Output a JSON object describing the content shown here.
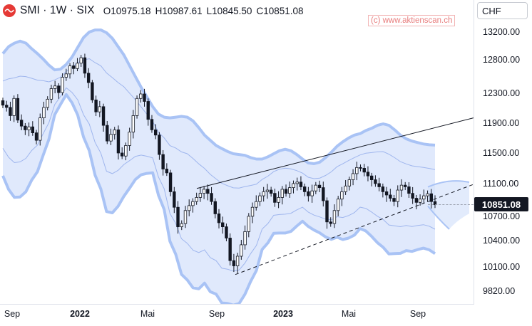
{
  "header": {
    "symbol": "SMI",
    "title": "SMI · 1W · SIX",
    "ohlc": {
      "open": "O10975.18",
      "high": "H10987.61",
      "low": "L10845.50",
      "close": "C10851.08"
    }
  },
  "watermark": "(c) www.aktienscan.ch",
  "currency_select": "CHF",
  "last_price": "10851.08",
  "colors": {
    "band_fill": "#d6e2fb",
    "band_outer": "#a9c3f5",
    "band_inner": "#8fa9ea",
    "candle": "#131722",
    "trendline": "#131722",
    "logo": "#e53935"
  },
  "icons": {
    "logo": "smi-logo-icon"
  },
  "y_axis_labels": [
    "13200.00",
    "12800.00",
    "12300.00",
    "11900.00",
    "11500.00",
    "11100.00",
    "10700.00",
    "10400.00",
    "10100.00",
    "9820.00"
  ],
  "x_axis_labels": [
    {
      "text": "Sep",
      "bold": false
    },
    {
      "text": "2022",
      "bold": true
    },
    {
      "text": "Mai",
      "bold": false
    },
    {
      "text": "Sep",
      "bold": false
    },
    {
      "text": "2023",
      "bold": true
    },
    {
      "text": "Mai",
      "bold": false
    },
    {
      "text": "Sep",
      "bold": false
    }
  ],
  "chart_data": {
    "type": "candlestick",
    "series_close": [
      12150,
      12120,
      12010,
      12240,
      11950,
      11870,
      11820,
      11860,
      11780,
      11680,
      11980,
      12120,
      12230,
      12380,
      12420,
      12320,
      12550,
      12600,
      12720,
      12680,
      12760,
      12840,
      12610,
      12470,
      12220,
      12060,
      12130,
      11880,
      11670,
      11760,
      11820,
      11510,
      11470,
      11610,
      11790,
      12010,
      12240,
      12300,
      12200,
      11960,
      11820,
      11750,
      11490,
      11300,
      11250,
      11010,
      10820,
      10580,
      10620,
      10780,
      10840,
      10890,
      10940,
      10990,
      11040,
      10990,
      10890,
      10740,
      10630,
      10580,
      10440,
      10180,
      10120,
      10230,
      10360,
      10520,
      10710,
      10820,
      10890,
      10960,
      11010,
      11030,
      10990,
      10880,
      10940,
      11040,
      10990,
      11060,
      11110,
      11130,
      11070,
      11010,
      10960,
      11020,
      11090,
      11060,
      10900,
      10640,
      10620,
      10780,
      10920,
      11010,
      11080,
      11160,
      11240,
      11320,
      11310,
      11260,
      11210,
      11160,
      11110,
      11070,
      11010,
      10970,
      10930,
      10890,
      11030,
      11090,
      11070,
      10990,
      10930,
      10880,
      10920,
      10960,
      10985,
      10890,
      10851
    ],
    "band_upper": [
      12900,
      13000,
      13050,
      13080,
      13050,
      12970,
      12900,
      12820,
      12730,
      12660,
      12670,
      12740,
      12850,
      12990,
      13130,
      13210,
      13240,
      13240,
      13200,
      13120,
      13000,
      12880,
      12720,
      12560,
      12400,
      12260,
      12130,
      12030,
      11990,
      11980,
      11990,
      12000,
      11990,
      11940,
      11850,
      11750,
      11680,
      11610,
      11570,
      11530,
      11500,
      11490,
      11480,
      11450,
      11430,
      11430,
      11460,
      11500,
      11540,
      11560,
      11540,
      11490,
      11430,
      11380,
      11370,
      11390,
      11450,
      11520,
      11600,
      11660,
      11710,
      11750,
      11770,
      11810,
      11840,
      11880,
      11900,
      11880,
      11820,
      11750,
      11700,
      11670,
      11650,
      11630,
      11620,
      11615
    ],
    "y_axis_ticks": [
      13200,
      12800,
      12300,
      11900,
      11500,
      11100,
      10700,
      10400,
      10100,
      9820
    ],
    "x_axis_ticks": [
      "Sep",
      "2022",
      "Mai",
      "Sep",
      "2023",
      "Mai",
      "Sep"
    ],
    "last_price": 10851.08
  }
}
